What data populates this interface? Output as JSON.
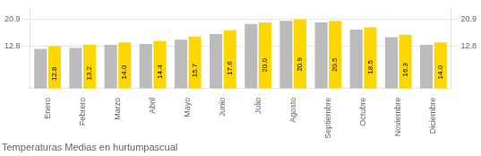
{
  "chart_data": {
    "type": "bar",
    "title": "Temperaturas Medias en hurtumpascual",
    "categories": [
      "Enero",
      "Febrero",
      "Marzo",
      "Abril",
      "Mayo",
      "Junio",
      "Julio",
      "Agosto",
      "Septiembre",
      "Octubre",
      "Noviembre",
      "Diciembre"
    ],
    "series": [
      {
        "color": "#BBBBBB",
        "values": [
          12.0,
          12.3,
          13.2,
          13.5,
          14.8,
          16.5,
          19.5,
          20.5,
          20.0,
          17.8,
          15.5,
          13.2
        ]
      },
      {
        "color": "#FFD700",
        "values": [
          12.8,
          13.2,
          14.0,
          14.4,
          15.7,
          17.6,
          20.0,
          20.9,
          20.5,
          18.5,
          16.3,
          14.0
        ],
        "value_labels": [
          "12.8",
          "13.2",
          "14.0",
          "14.4",
          "15.7",
          "17.6",
          "20.0",
          "20.9",
          "20.5",
          "18.5",
          "16.3",
          "14.0"
        ],
        "data_labels": true
      }
    ],
    "ylim": [
      0,
      24.5
    ],
    "yticks": [
      12.8,
      20.9
    ],
    "y2lim": [
      0,
      24.5
    ],
    "y2ticks": [
      12.8,
      20.9
    ],
    "grid": true
  }
}
